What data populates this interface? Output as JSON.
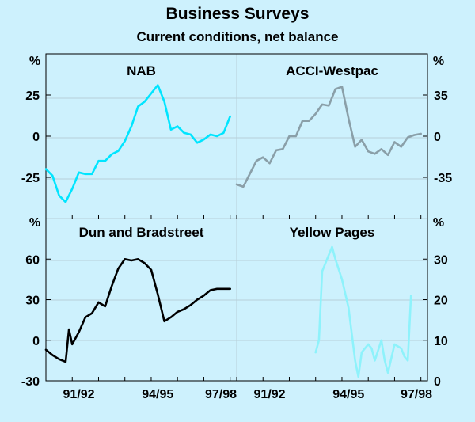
{
  "title": "Business Surveys",
  "subtitle": "Current conditions, net balance",
  "x_tick_labels": [
    "91/92",
    "94/95",
    "97/98"
  ],
  "chart_data": [
    {
      "type": "line",
      "title": "NAB",
      "unit": "%",
      "y_ticks": [
        25,
        0,
        -25
      ],
      "ylim": [
        -50,
        50
      ],
      "xlim": [
        1990.5,
        1997.75
      ],
      "color": "#00e5ff",
      "x": [
        1990.5,
        1990.75,
        1991.0,
        1991.25,
        1991.5,
        1991.75,
        1992.0,
        1992.25,
        1992.5,
        1992.75,
        1993.0,
        1993.25,
        1993.5,
        1993.75,
        1994.0,
        1994.25,
        1994.5,
        1994.75,
        1995.0,
        1995.25,
        1995.5,
        1995.75,
        1996.0,
        1996.25,
        1996.5,
        1996.75,
        1997.0,
        1997.25,
        1997.5
      ],
      "y": [
        -20,
        -24,
        -36,
        -40,
        -32,
        -22,
        -23,
        -23,
        -15,
        -15,
        -11,
        -9,
        -3,
        6,
        18,
        21,
        26,
        31,
        21,
        4,
        6,
        2,
        1,
        -4,
        -2,
        1,
        0,
        2,
        12
      ]
    },
    {
      "type": "line",
      "title": "ACCI-Westpac",
      "unit": "%",
      "y_ticks": [
        35,
        0,
        -35
      ],
      "ylim": [
        -70,
        70
      ],
      "xlim": [
        1990.5,
        1997.75
      ],
      "color": "#8a9fa8",
      "x": [
        1990.5,
        1990.75,
        1991.0,
        1991.25,
        1991.5,
        1991.75,
        1992.0,
        1992.25,
        1992.5,
        1992.75,
        1993.0,
        1993.25,
        1993.5,
        1993.75,
        1994.0,
        1994.25,
        1994.5,
        1994.75,
        1995.0,
        1995.25,
        1995.5,
        1995.75,
        1996.0,
        1996.25,
        1996.5,
        1996.75,
        1997.0,
        1997.25,
        1997.5
      ],
      "y": [
        -41,
        -43,
        -32,
        -21,
        -18,
        -23,
        -12,
        -11,
        0,
        0,
        13,
        13,
        19,
        27,
        26,
        40,
        42,
        15,
        -9,
        -3,
        -13,
        -15,
        -11,
        -16,
        -5,
        -9,
        -1,
        1,
        2
      ]
    },
    {
      "type": "line",
      "title": "Dun and Bradstreet",
      "unit": "%",
      "y_ticks": [
        60,
        30,
        0,
        -30
      ],
      "ylim": [
        -30,
        90
      ],
      "xlim": [
        1990.5,
        1997.75
      ],
      "color": "#000000",
      "x": [
        1990.5,
        1990.75,
        1991.0,
        1991.25,
        1991.375,
        1991.5,
        1991.75,
        1992.0,
        1992.25,
        1992.5,
        1992.75,
        1993.0,
        1993.25,
        1993.5,
        1993.75,
        1994.0,
        1994.25,
        1994.5,
        1994.75,
        1995.0,
        1995.25,
        1995.5,
        1995.75,
        1996.0,
        1996.25,
        1996.5,
        1996.75,
        1997.0,
        1997.25,
        1997.5
      ],
      "y": [
        -7,
        -11,
        -14,
        -16,
        8,
        -3,
        6,
        17,
        20,
        28,
        25,
        40,
        53,
        60,
        59,
        60,
        57,
        52,
        34,
        14,
        17,
        21,
        23,
        26,
        30,
        33,
        37,
        38,
        38,
        38
      ]
    },
    {
      "type": "line",
      "title": "Yellow Pages",
      "unit": "%",
      "y_ticks": [
        30,
        20,
        10,
        0
      ],
      "ylim": [
        0,
        40
      ],
      "xlim": [
        1990.5,
        1997.75
      ],
      "color": "#8ef2fb",
      "x": [
        1993.5,
        1993.625,
        1993.75,
        1994.0,
        1994.125,
        1994.25,
        1994.5,
        1994.75,
        1995.0,
        1995.125,
        1995.25,
        1995.5,
        1995.625,
        1995.75,
        1996.0,
        1996.125,
        1996.25,
        1996.5,
        1996.75,
        1996.875,
        1997.0,
        1997.125
      ],
      "y": [
        7,
        10,
        27,
        31,
        33,
        30,
        25,
        18,
        5,
        1,
        7,
        9,
        8,
        5,
        10,
        5,
        2,
        9,
        8,
        6,
        5,
        21
      ]
    }
  ]
}
